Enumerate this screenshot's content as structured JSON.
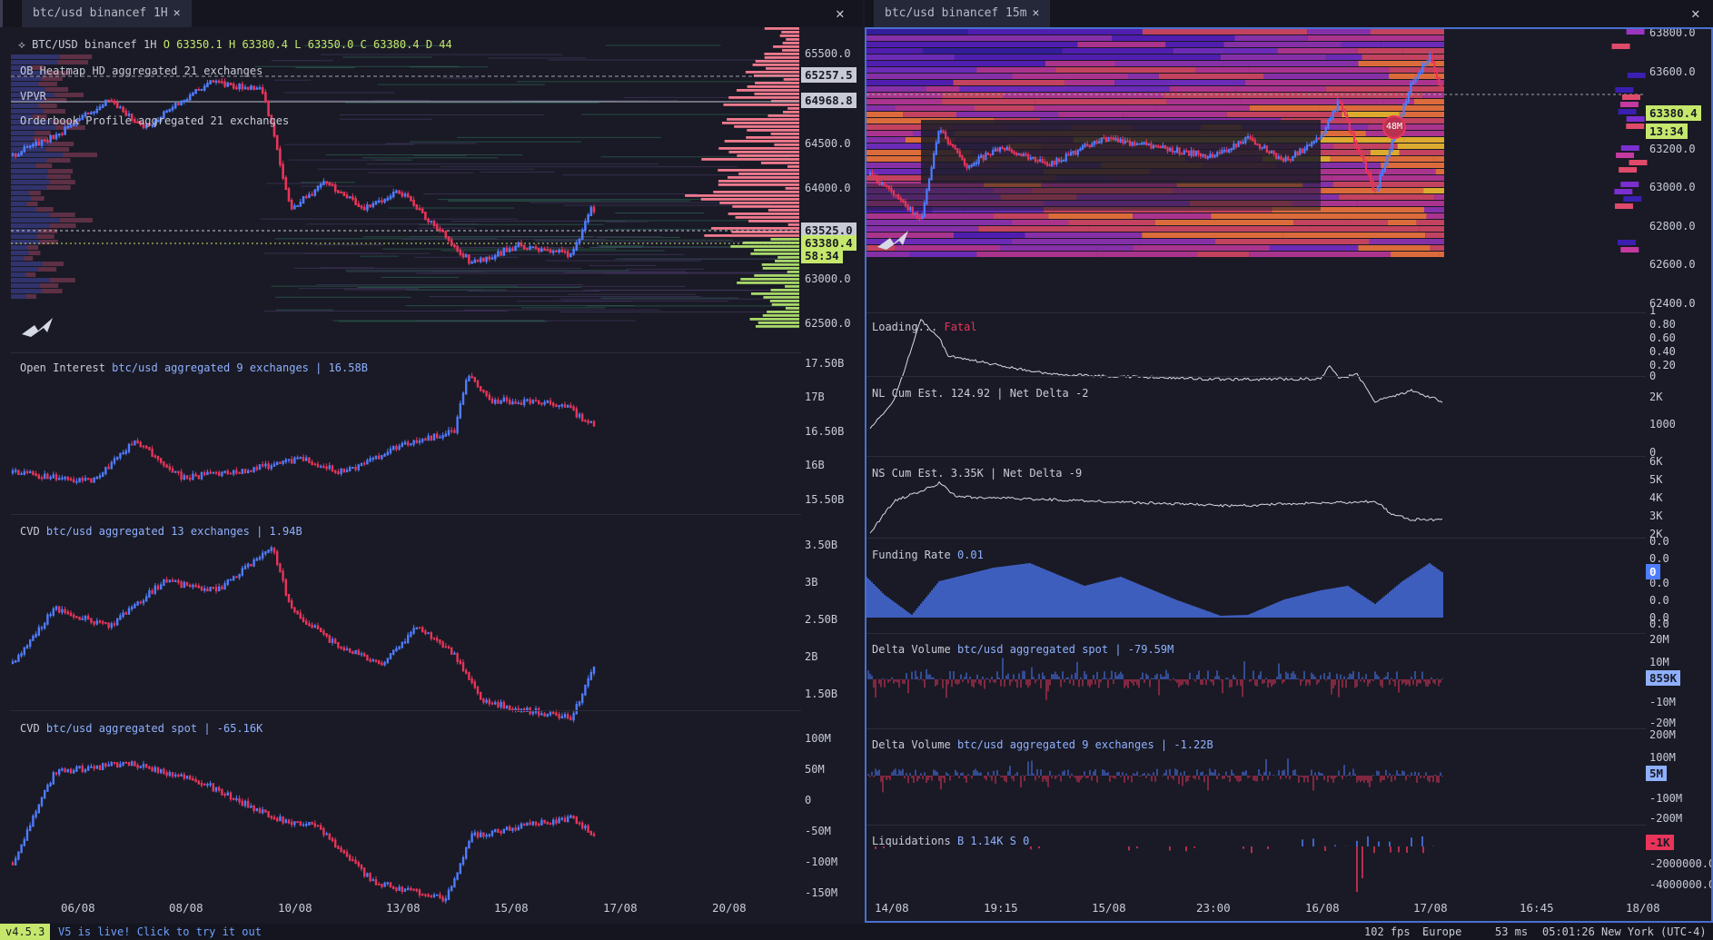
{
  "tabs": {
    "left": "btc/usd binancef 1H",
    "right": "btc/usd binancef 15m"
  },
  "left": {
    "header": {
      "symbol": "BTC/USD binancef 1H",
      "o_label": "O",
      "o": "63350.1",
      "h_label": "H",
      "h": "63380.4",
      "l_label": "L",
      "l": "63350.0",
      "c_label": "C",
      "c": "63380.4",
      "d_label": "D",
      "d": "44"
    },
    "overlays": [
      "OB Heatmap HD aggregated 21 exchanges",
      "VPVR",
      "Orderbook Profile aggregated 21 exchanges"
    ],
    "price_axis": [
      "65500.0",
      "64500.0",
      "64000.0",
      "63000.0",
      "62500.0"
    ],
    "price_tags": {
      "p1": "65257.5",
      "p2": "64968.8",
      "p3": "63525.0",
      "last": "63380.4",
      "countdown": "58:34"
    },
    "oi": {
      "name": "Open Interest",
      "detail": "btc/usd aggregated 9 exchanges | 16.58B",
      "axis": [
        "17.50B",
        "17B",
        "16.50B",
        "16B",
        "15.50B"
      ]
    },
    "cvd": {
      "name": "CVD",
      "detail": "btc/usd aggregated 13 exchanges | 1.94B",
      "axis": [
        "3.50B",
        "3B",
        "2.50B",
        "2B",
        "1.50B"
      ]
    },
    "cvd_spot": {
      "name": "CVD",
      "detail": "btc/usd aggregated spot | -65.16K",
      "axis": [
        "100M",
        "50M",
        "0",
        "-50M",
        "-100M",
        "-150M"
      ]
    },
    "dates": [
      "06/08",
      "08/08",
      "10/08",
      "13/08",
      "15/08",
      "17/08",
      "20/08"
    ]
  },
  "right": {
    "price_axis": [
      "63800.0",
      "63600.0",
      "63200.0",
      "63000.0",
      "62800.0",
      "62600.0",
      "62400.0"
    ],
    "price_tags": {
      "last": "63380.4",
      "countdown": "13:34"
    },
    "marker": "48M",
    "loading": {
      "text": "Loading...",
      "status": "Fatal",
      "axis": [
        "1",
        "0.80",
        "0.60",
        "0.40",
        "0.20",
        "0"
      ]
    },
    "nl": {
      "name": "NL Cum Est. 124.92 | Net Delta -2",
      "axis": [
        "2K",
        "1000",
        "0"
      ]
    },
    "ns": {
      "name": "NS Cum Est. 3.35K | Net Delta -9",
      "axis": [
        "6K",
        "5K",
        "4K",
        "3K",
        "2K"
      ]
    },
    "funding": {
      "name": "Funding Rate",
      "value": "0.01",
      "axis": [
        "0.0",
        "0.0",
        "0.0",
        "0.0",
        "0.0",
        "0.0"
      ],
      "tag": "0"
    },
    "dv_spot": {
      "name": "Delta Volume",
      "detail": "btc/usd aggregated spot | -79.59M",
      "axis": [
        "20M",
        "10M",
        "-10M",
        "-20M"
      ],
      "tag": "859K"
    },
    "dv_agg": {
      "name": "Delta Volume",
      "detail": "btc/usd aggregated 9 exchanges | -1.22B",
      "axis": [
        "200M",
        "100M",
        "-100M",
        "-200M"
      ],
      "tag": "5M"
    },
    "liq": {
      "name": "Liquidations",
      "detail": "B 1.14K S 0",
      "axis": [
        "-2000000.0",
        "-4000000.0"
      ],
      "tag": "-1K"
    },
    "dates": [
      "14/08",
      "19:15",
      "15/08",
      "23:00",
      "16/08",
      "17/08",
      "16:45",
      "18/08"
    ]
  },
  "footer": {
    "version": "v4.5.3",
    "news": "V5 is live! Click to try it out",
    "fps": "102 fps",
    "region": "Europe",
    "latency": "53 ms",
    "clock": "05:01:26 New York (UTC-4)"
  },
  "colors": {
    "up": "#4f7cff",
    "down": "#e8345a",
    "bg": "#191a25",
    "accent": "#c5e86c"
  }
}
